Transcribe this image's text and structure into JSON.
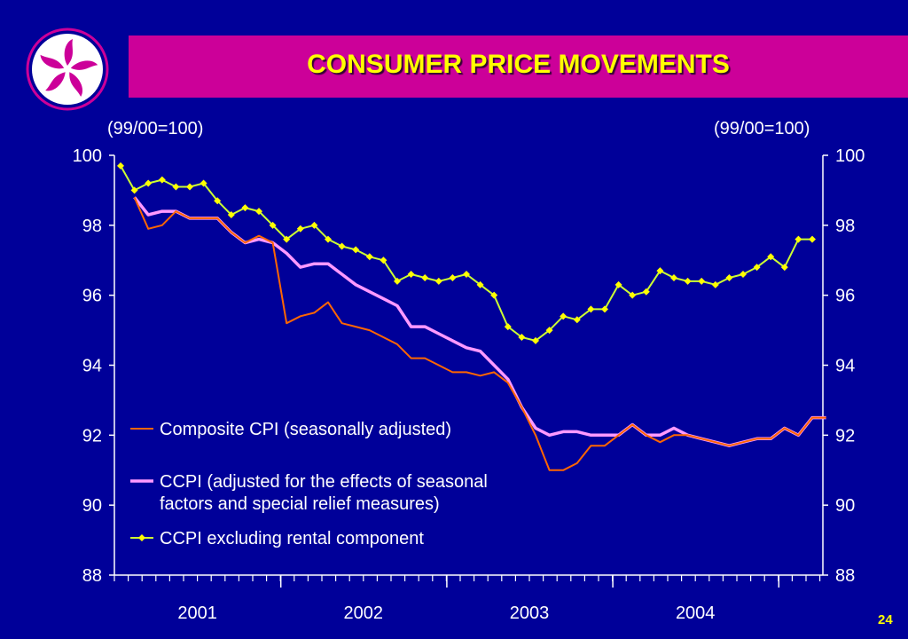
{
  "title": "CONSUMER PRICE MOVEMENTS",
  "page_number": "24",
  "colors": {
    "background": "#000099",
    "title_bar": "#cc0099",
    "title_text": "#ffff00",
    "axis": "#ffffff",
    "series_composite": "#ff6600",
    "series_ccpi": "#ff99ff",
    "series_excl_rent": "#ccff33",
    "marker": "#ffff00"
  },
  "logo_icon": "bauhinia-flower-icon",
  "chart_data": {
    "type": "line",
    "y_unit_left": "(99/00=100)",
    "y_unit_right": "(99/00=100)",
    "ylim": [
      88,
      100
    ],
    "yticks": [
      100,
      98,
      96,
      94,
      92,
      90,
      88
    ],
    "year_labels": [
      "2001",
      "2002",
      "2003",
      "2004"
    ],
    "x_note": "monthly, Jul 2000 to Dec 2004",
    "grid": false,
    "legend_placement": "bottom-left inside plot",
    "series": [
      {
        "name": "Composite CPI (seasonally adjusted)",
        "start_index": 1,
        "values": [
          98.8,
          97.9,
          98.0,
          98.4,
          98.2,
          98.2,
          98.2,
          97.8,
          97.5,
          97.7,
          97.5,
          95.2,
          95.4,
          95.5,
          95.8,
          95.2,
          95.1,
          95.0,
          94.8,
          94.6,
          94.2,
          94.2,
          94.0,
          93.8,
          93.8,
          93.7,
          93.8,
          93.5,
          92.8,
          92.0,
          91.0,
          91.0,
          91.2,
          91.7,
          91.7,
          92.0,
          92.3,
          92.0,
          91.8,
          92.0,
          92.0,
          91.9,
          91.8,
          91.7,
          91.8,
          91.9,
          91.9,
          92.2,
          92.0,
          92.5,
          92.5
        ]
      },
      {
        "name": "CCPI (adjusted for the effects of seasonal factors and special relief measures)",
        "start_index": 1,
        "values": [
          98.8,
          98.3,
          98.4,
          98.4,
          98.2,
          98.2,
          98.2,
          97.8,
          97.5,
          97.6,
          97.5,
          97.2,
          96.8,
          96.9,
          96.9,
          96.6,
          96.3,
          96.1,
          95.9,
          95.7,
          95.1,
          95.1,
          94.9,
          94.7,
          94.5,
          94.4,
          94.0,
          93.6,
          92.8,
          92.2,
          92.0,
          92.1,
          92.1,
          92.0,
          92.0,
          92.0,
          92.3,
          92.0,
          92.0,
          92.2,
          92.0,
          91.9,
          91.8,
          91.7,
          91.8,
          91.9,
          91.9,
          92.2,
          92.0,
          92.5,
          92.5
        ]
      },
      {
        "name": "CCPI excluding rental component",
        "start_index": 0,
        "values": [
          99.7,
          99.0,
          99.2,
          99.3,
          99.1,
          99.1,
          99.2,
          98.7,
          98.3,
          98.5,
          98.4,
          98.0,
          97.6,
          97.9,
          98.0,
          97.6,
          97.4,
          97.3,
          97.1,
          97.0,
          96.4,
          96.6,
          96.5,
          96.4,
          96.5,
          96.6,
          96.3,
          96.0,
          95.1,
          94.8,
          94.7,
          95.0,
          95.4,
          95.3,
          95.6,
          95.6,
          96.3,
          96.0,
          96.1,
          96.7,
          96.5,
          96.4,
          96.4,
          96.3,
          96.5,
          96.6,
          96.8,
          97.1,
          96.8,
          97.6,
          97.6
        ]
      }
    ]
  }
}
